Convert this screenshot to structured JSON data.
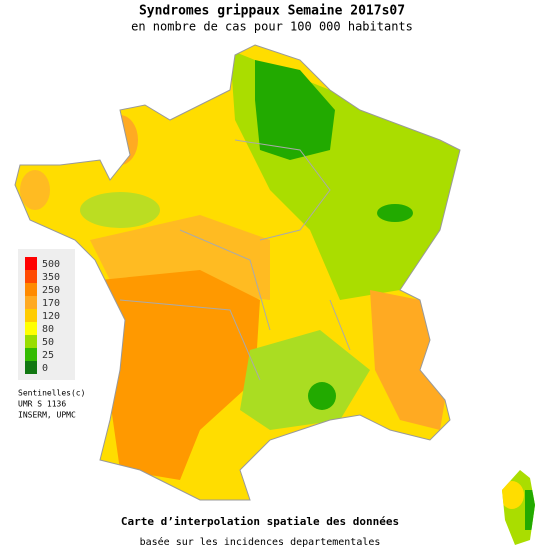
{
  "header": {
    "title": "Syndromes grippaux Semaine 2017s07",
    "subtitle": "en nombre de cas pour 100 000 habitants"
  },
  "legend": {
    "items": [
      {
        "value": 500,
        "color": "#ff0000"
      },
      {
        "value": 350,
        "color": "#ff4a00"
      },
      {
        "value": 250,
        "color": "#ff8a00"
      },
      {
        "value": 170,
        "color": "#ffaa22"
      },
      {
        "value": 120,
        "color": "#ffcc00"
      },
      {
        "value": 80,
        "color": "#ffff00"
      },
      {
        "value": 50,
        "color": "#99dd00"
      },
      {
        "value": 25,
        "color": "#33bb00"
      },
      {
        "value": 0,
        "color": "#117711"
      }
    ]
  },
  "credits": [
    "Sentinelles(c)",
    "UMR S 1136",
    "INSERM, UPMC"
  ],
  "footer": {
    "title": "Carte d’interpolation spatiale des données",
    "subtitle": "basée sur les incidences departementales"
  }
}
